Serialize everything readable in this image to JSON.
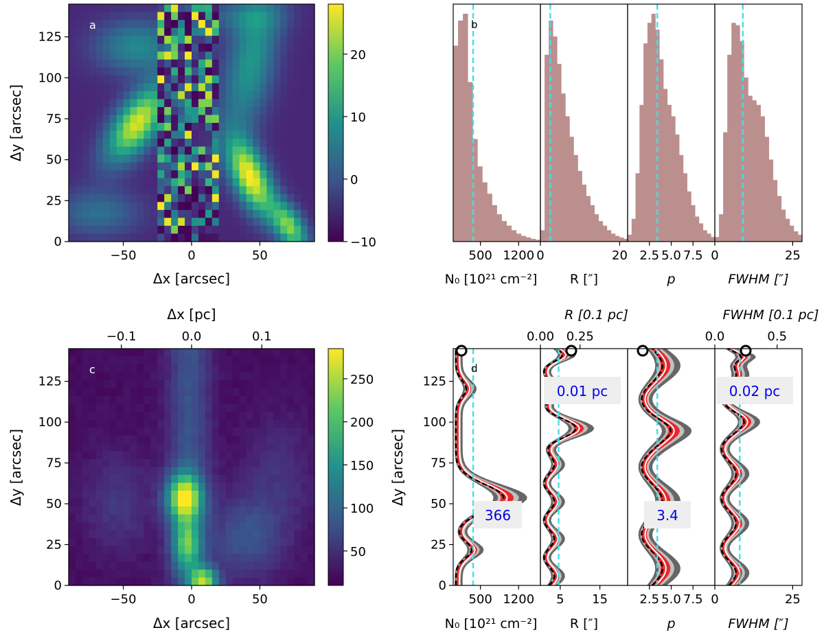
{
  "chart_data": [
    {
      "panel": "a",
      "type": "heatmap",
      "xlabel": "Δx [arcsec]",
      "ylabel": "Δy [arcsec]",
      "xlim": [
        -90,
        90
      ],
      "ylim": [
        0,
        145
      ],
      "xticks": [
        "−50",
        "0",
        "50"
      ],
      "yticks": [
        "0",
        "25",
        "50",
        "75",
        "100",
        "125"
      ],
      "colorbar": {
        "range": [
          -10,
          28
        ],
        "ticks": [
          "−10",
          "0",
          "10",
          "20"
        ]
      },
      "colormap": "viridis"
    },
    {
      "panel": "b",
      "type": "bar",
      "ylabel": "",
      "subplots": [
        {
          "xlabel": "N₀ [10²¹ cm⁻²]",
          "xticks": [
            "500",
            "1200"
          ],
          "xlim": [
            0,
            1600
          ],
          "median": 366,
          "values": [
            0.86,
            0.97,
            1.0,
            0.7,
            0.45,
            0.33,
            0.26,
            0.21,
            0.16,
            0.12,
            0.09,
            0.07,
            0.05,
            0.035,
            0.025,
            0.018,
            0.012,
            0.008
          ]
        },
        {
          "xlabel": "R [″]",
          "xticks": [
            "0",
            "20"
          ],
          "xlim": [
            0,
            22
          ],
          "median": 2.5,
          "values": [
            0.05,
            0.82,
            0.97,
            0.9,
            0.78,
            0.65,
            0.55,
            0.46,
            0.38,
            0.31,
            0.25,
            0.2,
            0.16,
            0.12,
            0.09,
            0.07,
            0.05,
            0.035,
            0.025,
            0.018,
            0.012
          ]
        },
        {
          "xlabel": "p",
          "xticks": [
            "2.5",
            "5.0",
            "7.5"
          ],
          "xlim": [
            0,
            10
          ],
          "median": 3.4,
          "values": [
            0.03,
            0.1,
            0.3,
            0.6,
            0.87,
            0.96,
            1.0,
            0.93,
            0.8,
            0.67,
            0.6,
            0.55,
            0.47,
            0.38,
            0.3,
            0.22,
            0.16,
            0.11,
            0.08,
            0.05,
            0.035,
            0.02
          ]
        },
        {
          "xlabel": "FWHM [″]",
          "xticks": [
            "0",
            "25"
          ],
          "xlim": [
            0,
            28
          ],
          "median": 9,
          "values": [
            0.02,
            0.12,
            0.48,
            0.82,
            0.96,
            0.95,
            0.88,
            0.72,
            0.64,
            0.62,
            0.6,
            0.55,
            0.46,
            0.36,
            0.27,
            0.2,
            0.14,
            0.1,
            0.07,
            0.045,
            0.03
          ]
        }
      ]
    },
    {
      "panel": "c",
      "type": "heatmap",
      "xlabel": "Δx [arcsec]",
      "ylabel": "Δy [arcsec]",
      "top_xlabel": "Δx [pc]",
      "top_xticks": [
        "−0.1",
        "0.0",
        "0.1"
      ],
      "xlim": [
        -90,
        90
      ],
      "ylim": [
        0,
        145
      ],
      "xticks": [
        "−50",
        "0",
        "50"
      ],
      "yticks": [
        "0",
        "25",
        "50",
        "75",
        "100",
        "125"
      ],
      "colorbar": {
        "range": [
          10,
          285
        ],
        "ticks": [
          "50",
          "100",
          "150",
          "200",
          "250"
        ]
      },
      "colormap": "viridis"
    },
    {
      "panel": "d",
      "type": "line",
      "ylabel": "Δy [arcsec]",
      "yticks": [
        "0",
        "25",
        "50",
        "75",
        "100",
        "125"
      ],
      "ylim": [
        0,
        145
      ],
      "subplots": [
        {
          "xlabel": "N₀ [10²¹ cm⁻²]",
          "xticks": [
            "500",
            "1200"
          ],
          "xlim": [
            0,
            1600
          ],
          "median": 366,
          "annotation": "366"
        },
        {
          "xlabel": "R [″]",
          "xticks": [
            "5",
            "15"
          ],
          "xlim": [
            0,
            22
          ],
          "median": 4.6,
          "annotation": "0.01 pc",
          "top_xlabel": "R [0.1 pc]",
          "top_xticks": [
            "0.00",
            "0.25"
          ]
        },
        {
          "xlabel": "p",
          "xticks": [
            "2.5",
            "5.0",
            "7.5"
          ],
          "xlim": [
            0,
            10
          ],
          "median": 3.4,
          "annotation": "3.4"
        },
        {
          "xlabel": "FWHM [″]",
          "xticks": [
            "0",
            "25"
          ],
          "xlim": [
            0,
            28
          ],
          "median": 8,
          "annotation": "0.02 pc",
          "top_xlabel": "FWHM [0.1 pc]",
          "top_xticks": [
            "0.0",
            "0.5"
          ]
        }
      ]
    }
  ],
  "colors": {
    "hist": "#bc8f8f",
    "median": "#40e0e8",
    "band_outer": "#666666",
    "band_mid": "#c0c0c0",
    "band_inner": "#e8282a",
    "annotation": "#0000ee"
  }
}
